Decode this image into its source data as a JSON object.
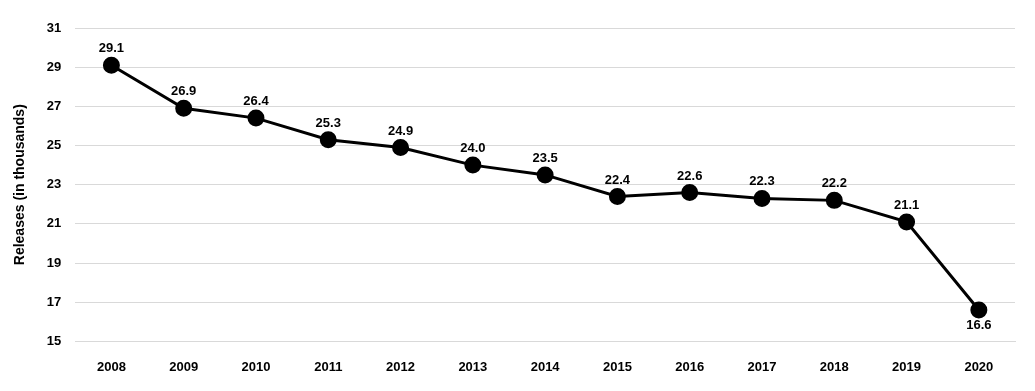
{
  "chart_data": {
    "type": "line",
    "y_label": "Releases (in thousands)",
    "categories": [
      "2008",
      "2009",
      "2010",
      "2011",
      "2012",
      "2013",
      "2014",
      "2015",
      "2016",
      "2017",
      "2018",
      "2019",
      "2020"
    ],
    "values": [
      29.1,
      26.9,
      26.4,
      25.3,
      24.9,
      24.0,
      23.5,
      22.4,
      22.6,
      22.3,
      22.2,
      21.1,
      16.6
    ],
    "value_labels": [
      "29.1",
      "26.9",
      "26.4",
      "25.3",
      "24.9",
      "24.0",
      "23.5",
      "22.4",
      "22.6",
      "22.3",
      "22.2",
      "21.1",
      "16.6"
    ],
    "color": "#000000",
    "marker": "circle",
    "line_style": "solid",
    "ylim": [
      15,
      31
    ],
    "yticks": [
      15,
      17,
      19,
      21,
      23,
      25,
      27,
      29,
      31
    ],
    "grid": true,
    "data_labels": true
  }
}
